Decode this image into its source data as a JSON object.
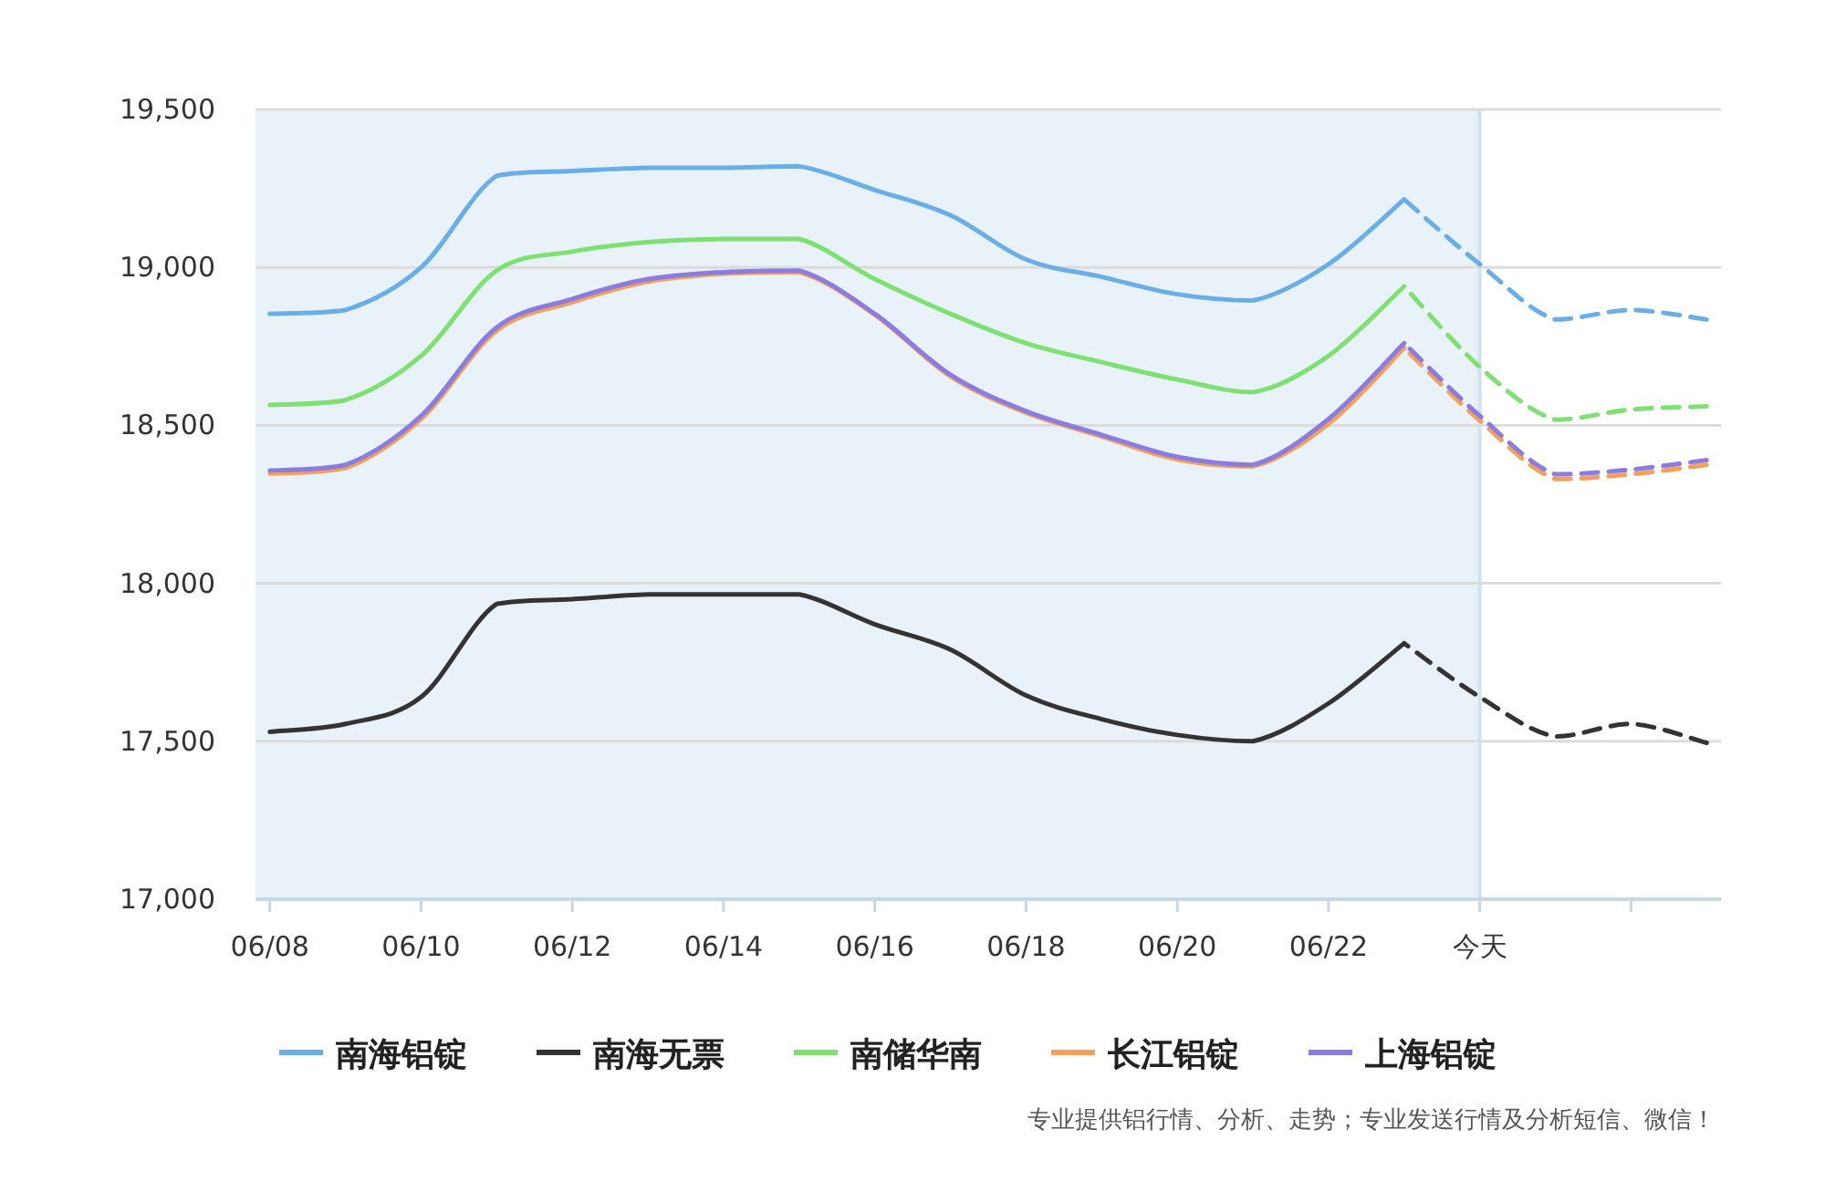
{
  "chart_data": {
    "type": "line",
    "categories": [
      "06/08",
      null,
      "06/10",
      null,
      "06/12",
      null,
      "06/14",
      null,
      "06/16",
      null,
      "06/18",
      null,
      "06/20",
      null,
      "06/22",
      null,
      "今天",
      null,
      null,
      null
    ],
    "ylim": [
      17000,
      19500
    ],
    "yticks": [
      {
        "value": 17000,
        "label": "17,000"
      },
      {
        "value": 17500,
        "label": "17,500"
      },
      {
        "value": 18000,
        "label": "18,000"
      },
      {
        "value": 18500,
        "label": "18,500"
      },
      {
        "value": 19000,
        "label": "19,000"
      },
      {
        "value": 19500,
        "label": "19,500"
      }
    ],
    "grid": "y",
    "legend": "bottom",
    "line_style": "solid",
    "marker": "none",
    "bands": [
      {
        "axis": "x",
        "from": "06/08",
        "to": "今天",
        "color": "#e9f2f9"
      }
    ],
    "annotations": [
      "专业提供铝行情、分析、走势；专业发送行情及分析短信、微信！"
    ],
    "series": [
      {
        "name": "南海铝锭",
        "color": "#6aaee8",
        "values": [
          18853,
          18865,
          19000,
          19290,
          19305,
          19315,
          19315,
          19320,
          19245,
          19165,
          19025,
          18970,
          18915,
          18895,
          19010,
          19215,
          null,
          null,
          null,
          null
        ]
      },
      {
        "name": "南海无票",
        "color": "#333333",
        "values": [
          17530,
          17555,
          17640,
          17935,
          17950,
          17965,
          17965,
          17965,
          17870,
          17790,
          17645,
          17570,
          17520,
          17500,
          17620,
          17810,
          null,
          null,
          null,
          null
        ]
      },
      {
        "name": "南储华南",
        "color": "#7ee070",
        "values": [
          18565,
          18580,
          18720,
          18990,
          19050,
          19080,
          19090,
          19090,
          18963,
          18853,
          18760,
          18700,
          18645,
          18605,
          18720,
          18940,
          null,
          null,
          null,
          null
        ]
      },
      {
        "name": "长江铝锭",
        "color": "#f5a05a",
        "values": [
          18347,
          18365,
          18520,
          18800,
          18890,
          18955,
          18980,
          18985,
          18850,
          18655,
          18540,
          18465,
          18392,
          18370,
          18505,
          18745,
          null,
          null,
          null,
          null
        ]
      },
      {
        "name": "上海铝锭",
        "color": "#8a7ce0",
        "values": [
          18357,
          18375,
          18530,
          18810,
          18900,
          18963,
          18985,
          18990,
          18853,
          18660,
          18545,
          18470,
          18400,
          18375,
          18520,
          18760,
          null,
          null,
          null,
          null
        ]
      },
      {
        "color": "#6aaee8",
        "line_style": "dashed",
        "values": [
          null,
          null,
          null,
          null,
          null,
          null,
          null,
          null,
          null,
          null,
          null,
          null,
          null,
          null,
          null,
          19215,
          19010,
          18835,
          18865,
          18835
        ]
      },
      {
        "color": "#333333",
        "line_style": "dashed",
        "values": [
          null,
          null,
          null,
          null,
          null,
          null,
          null,
          null,
          null,
          null,
          null,
          null,
          null,
          null,
          null,
          17810,
          17640,
          17515,
          17555,
          17495
        ]
      },
      {
        "color": "#7ee070",
        "line_style": "dashed",
        "values": [
          null,
          null,
          null,
          null,
          null,
          null,
          null,
          null,
          null,
          null,
          null,
          null,
          null,
          null,
          null,
          18940,
          18685,
          18518,
          18550,
          18560
        ]
      },
      {
        "color": "#f5a05a",
        "line_style": "dashed",
        "values": [
          null,
          null,
          null,
          null,
          null,
          null,
          null,
          null,
          null,
          null,
          null,
          null,
          null,
          null,
          null,
          18745,
          18515,
          18330,
          18345,
          18375
        ]
      },
      {
        "color": "#8a7ce0",
        "line_style": "dashed",
        "values": [
          null,
          null,
          null,
          null,
          null,
          null,
          null,
          null,
          null,
          null,
          null,
          null,
          null,
          null,
          null,
          18760,
          18530,
          18345,
          18360,
          18390
        ]
      }
    ]
  }
}
